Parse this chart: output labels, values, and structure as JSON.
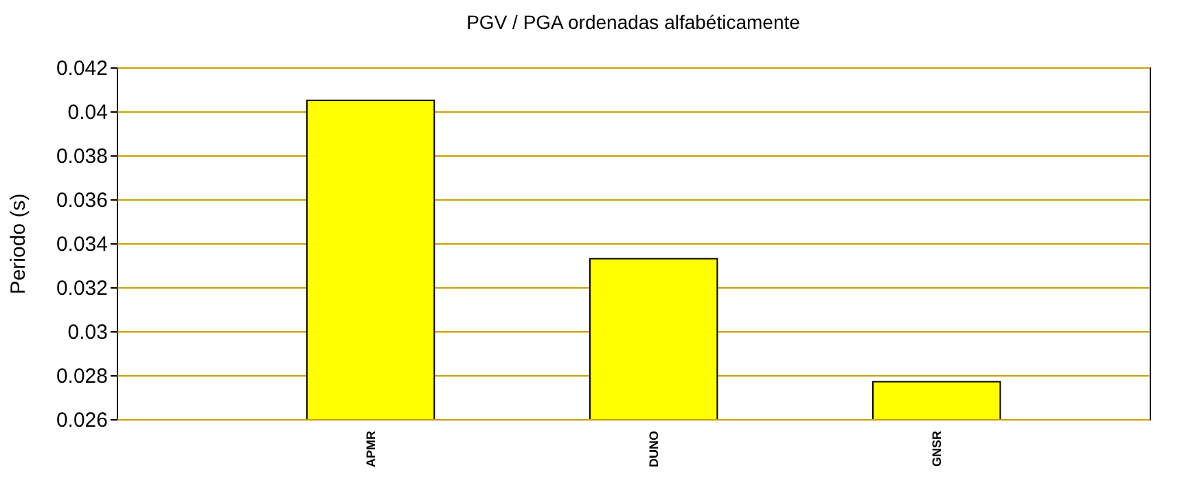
{
  "chart_data": {
    "type": "bar",
    "title": "PGV / PGA ordenadas alfabéticamente",
    "ylabel": "Periodo (s)",
    "categories": [
      "APMR",
      "DUNO",
      "GNSR"
    ],
    "values": [
      0.0405,
      0.0333,
      0.0277
    ],
    "color": "#ffff00",
    "ylim": [
      0.026,
      0.042
    ],
    "yticks": [
      0.026,
      0.028,
      0.03,
      0.032,
      0.034,
      0.036,
      0.038,
      0.04,
      0.042
    ],
    "grid": "y"
  }
}
